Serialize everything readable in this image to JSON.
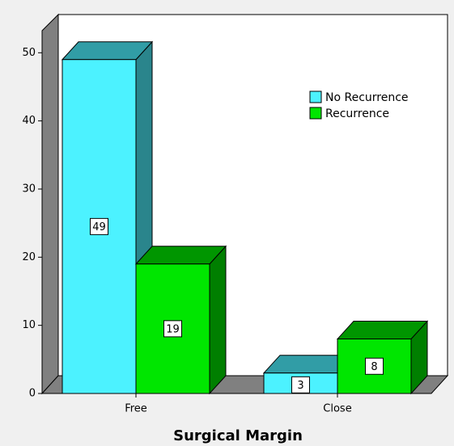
{
  "chart_data": {
    "type": "bar3d",
    "x_label": "Surgical Margin",
    "categories": [
      "Free",
      "Close"
    ],
    "series": [
      {
        "name": "No Recurrence",
        "color": "#4cf2ff",
        "values": [
          49,
          3
        ]
      },
      {
        "name": "Recurrence",
        "color": "#00e600",
        "values": [
          19,
          8
        ]
      }
    ],
    "ylim": [
      0,
      53
    ],
    "yticks": [
      0,
      10,
      20,
      30,
      40,
      50
    ],
    "legend": "upper right"
  }
}
